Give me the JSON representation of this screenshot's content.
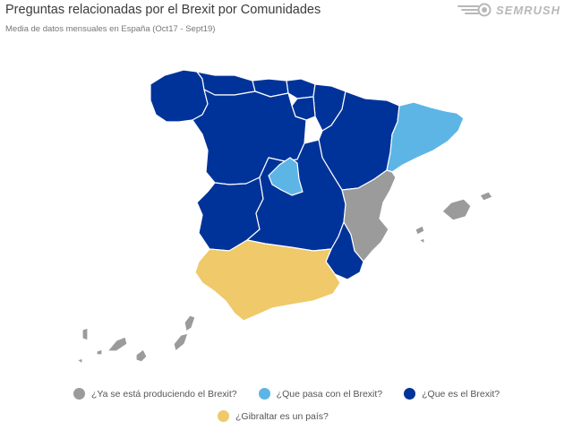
{
  "header": {
    "title": "Preguntas relacionadas por el Brexit por Comunidades",
    "subtitle": "Media de datos mensuales en España (Oct17 - Sept19)"
  },
  "brand": {
    "name": "SEMRUSH",
    "logo_icon": "semrush-fireball-icon"
  },
  "colors": {
    "gray": "#9b9b9b",
    "light_blue": "#5db5e6",
    "dark_blue": "#003399",
    "yellow": "#efc96a"
  },
  "legend": [
    {
      "label": "¿Ya se está produciendo el Brexit?",
      "color": "#9b9b9b"
    },
    {
      "label": "¿Que pasa con el Brexit?",
      "color": "#5db5e6"
    },
    {
      "label": "¿Que es el Brexit?",
      "color": "#003399"
    },
    {
      "label": "¿Gibraltar es un país?",
      "color": "#efc96a"
    }
  ],
  "regions": [
    {
      "name": "Galicia",
      "category": "¿Que es el Brexit?"
    },
    {
      "name": "Asturias",
      "category": "¿Que es el Brexit?"
    },
    {
      "name": "Cantabria",
      "category": "¿Que es el Brexit?"
    },
    {
      "name": "País Vasco",
      "category": "¿Que es el Brexit?"
    },
    {
      "name": "Navarra",
      "category": "¿Que es el Brexit?"
    },
    {
      "name": "La Rioja",
      "category": "¿Que es el Brexit?"
    },
    {
      "name": "Aragón",
      "category": "¿Que es el Brexit?"
    },
    {
      "name": "Castilla y León",
      "category": "¿Que es el Brexit?"
    },
    {
      "name": "Extremadura",
      "category": "¿Que es el Brexit?"
    },
    {
      "name": "Castilla-La Mancha",
      "category": "¿Que es el Brexit?"
    },
    {
      "name": "Murcia",
      "category": "¿Que es el Brexit?"
    },
    {
      "name": "Madrid",
      "category": "¿Que pasa con el Brexit?"
    },
    {
      "name": "Cataluña",
      "category": "¿Que pasa con el Brexit?"
    },
    {
      "name": "Comunidad Valenciana",
      "category": "¿Ya se está produciendo el Brexit?"
    },
    {
      "name": "Islas Baleares",
      "category": "¿Ya se está produciendo el Brexit?"
    },
    {
      "name": "Canarias",
      "category": "¿Ya se está produciendo el Brexit?"
    },
    {
      "name": "Andalucía",
      "category": "¿Gibraltar es un país?"
    }
  ]
}
